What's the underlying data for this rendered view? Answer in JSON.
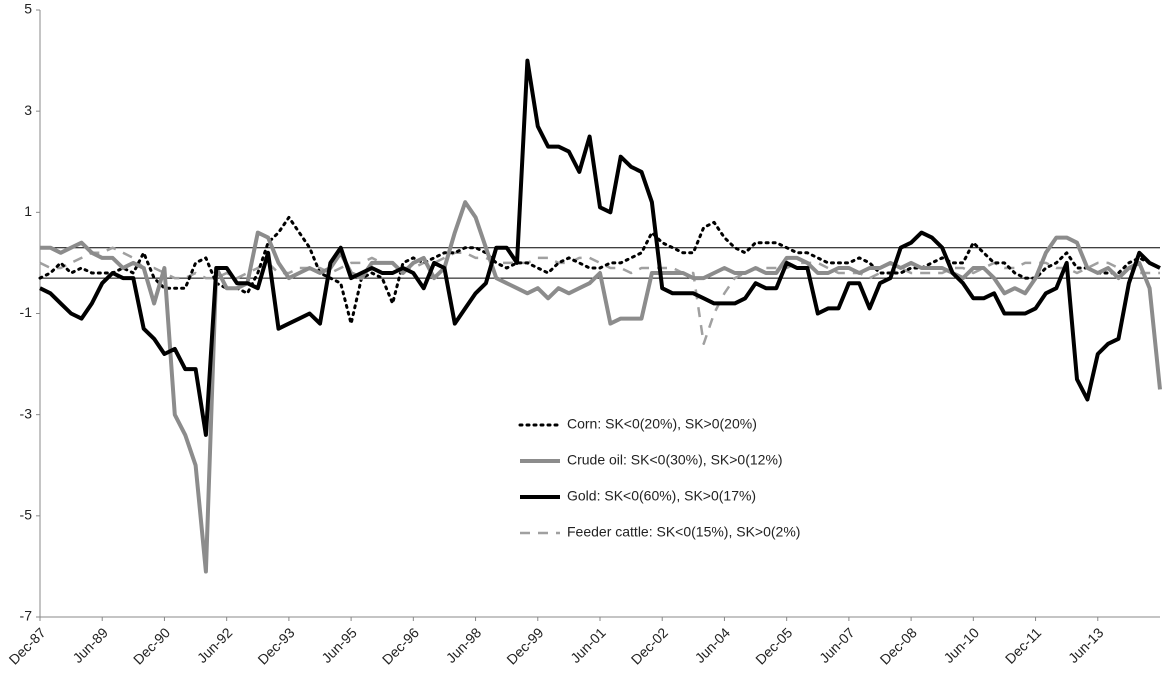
{
  "chart_data": {
    "type": "line",
    "categories": [
      "Dec-87",
      null,
      null,
      null,
      null,
      null,
      "Jun-89",
      null,
      null,
      null,
      null,
      null,
      "Dec-90",
      null,
      null,
      null,
      null,
      null,
      "Jun-92",
      null,
      null,
      null,
      null,
      null,
      "Dec-93",
      null,
      null,
      null,
      null,
      null,
      "Jun-95",
      null,
      null,
      null,
      null,
      null,
      "Dec-96",
      null,
      null,
      null,
      null,
      null,
      "Jun-98",
      null,
      null,
      null,
      null,
      null,
      "Dec-99",
      null,
      null,
      null,
      null,
      null,
      "Jun-01",
      null,
      null,
      null,
      null,
      null,
      "Dec-02",
      null,
      null,
      null,
      null,
      null,
      "Jun-04",
      null,
      null,
      null,
      null,
      null,
      "Dec-05",
      null,
      null,
      null,
      null,
      null,
      "Jun-07",
      null,
      null,
      null,
      null,
      null,
      "Dec-08",
      null,
      null,
      null,
      null,
      null,
      "Jun-10",
      null,
      null,
      null,
      null,
      null,
      "Dec-11",
      null,
      null,
      null,
      null,
      null,
      "Jun-13",
      null,
      null,
      null,
      null,
      null,
      null
    ],
    "series": [
      {
        "name": "Corn: SK<0(20%), SK>0(20%)",
        "color": "#000000",
        "dash": "dotted",
        "width": 3,
        "values": [
          -0.3,
          -0.2,
          0.0,
          -0.2,
          -0.1,
          -0.2,
          -0.2,
          -0.2,
          -0.1,
          -0.2,
          0.2,
          -0.3,
          -0.5,
          -0.5,
          -0.5,
          0.0,
          0.1,
          -0.4,
          -0.5,
          -0.5,
          -0.6,
          -0.2,
          0.4,
          0.6,
          0.9,
          0.6,
          0.3,
          -0.2,
          -0.3,
          -0.4,
          -1.2,
          -0.3,
          -0.2,
          -0.3,
          -0.8,
          0.0,
          0.1,
          0.0,
          0.1,
          0.2,
          0.2,
          0.3,
          0.3,
          0.2,
          0.0,
          -0.1,
          0.0,
          0.0,
          -0.1,
          -0.2,
          0.0,
          0.1,
          0.0,
          -0.1,
          -0.1,
          0.0,
          0.0,
          0.1,
          0.2,
          0.6,
          0.4,
          0.3,
          0.2,
          0.2,
          0.7,
          0.8,
          0.5,
          0.3,
          0.2,
          0.4,
          0.4,
          0.4,
          0.3,
          0.2,
          0.2,
          0.1,
          0.0,
          0.0,
          0.0,
          0.1,
          0.0,
          -0.2,
          -0.2,
          -0.2,
          -0.1,
          -0.1,
          0.0,
          0.1,
          0.0,
          0.0,
          0.4,
          0.2,
          0.0,
          0.0,
          -0.2,
          -0.3,
          -0.3,
          -0.1,
          0.0,
          0.2,
          -0.1,
          -0.1,
          -0.2,
          -0.2,
          -0.2,
          0.0,
          0.1,
          0.0,
          -0.1
        ]
      },
      {
        "name": "Crude oil: SK<0(30%), SK>0(12%)",
        "color": "#8c8c8c",
        "dash": "solid",
        "width": 4,
        "values": [
          0.3,
          0.3,
          0.2,
          0.3,
          0.4,
          0.2,
          0.1,
          0.1,
          -0.1,
          0.0,
          -0.1,
          -0.8,
          -0.1,
          -3.0,
          -3.4,
          -4.0,
          -6.1,
          -0.1,
          -0.5,
          -0.5,
          -0.4,
          0.6,
          0.5,
          0.0,
          -0.3,
          -0.2,
          -0.1,
          -0.2,
          -0.1,
          0.2,
          -0.2,
          -0.3,
          0.0,
          0.0,
          0.0,
          -0.2,
          0.0,
          0.1,
          -0.3,
          -0.1,
          0.6,
          1.2,
          0.9,
          0.3,
          -0.3,
          -0.4,
          -0.5,
          -0.6,
          -0.5,
          -0.7,
          -0.5,
          -0.6,
          -0.5,
          -0.4,
          -0.2,
          -1.2,
          -1.1,
          -1.1,
          -1.1,
          -0.2,
          -0.2,
          -0.2,
          -0.2,
          -0.3,
          -0.3,
          -0.2,
          -0.1,
          -0.2,
          -0.2,
          -0.1,
          -0.2,
          -0.2,
          0.1,
          0.1,
          0.0,
          -0.2,
          -0.2,
          -0.1,
          -0.1,
          -0.2,
          -0.1,
          -0.1,
          0.0,
          -0.1,
          0.0,
          -0.1,
          -0.1,
          -0.1,
          -0.2,
          -0.3,
          -0.1,
          -0.1,
          -0.3,
          -0.6,
          -0.5,
          -0.6,
          -0.3,
          0.2,
          0.5,
          0.5,
          0.4,
          -0.1,
          -0.2,
          -0.1,
          -0.3,
          -0.1,
          0.0,
          -0.5,
          -2.5
        ]
      },
      {
        "name": "Gold: SK<0(60%), SK>0(17%)",
        "color": "#000000",
        "dash": "solid",
        "width": 4,
        "values": [
          -0.5,
          -0.6,
          -0.8,
          -1.0,
          -1.1,
          -0.8,
          -0.4,
          -0.2,
          -0.3,
          -0.3,
          -1.3,
          -1.5,
          -1.8,
          -1.7,
          -2.1,
          -2.1,
          -3.4,
          -0.1,
          -0.1,
          -0.4,
          -0.4,
          -0.5,
          0.2,
          -1.3,
          -1.2,
          -1.1,
          -1.0,
          -1.2,
          0.0,
          0.3,
          -0.3,
          -0.2,
          -0.1,
          -0.2,
          -0.2,
          -0.1,
          -0.2,
          -0.5,
          0.0,
          -0.1,
          -1.2,
          -0.9,
          -0.6,
          -0.4,
          0.3,
          0.3,
          0.0,
          4.0,
          2.7,
          2.3,
          2.3,
          2.2,
          1.8,
          2.5,
          1.1,
          1.0,
          2.1,
          1.9,
          1.8,
          1.2,
          -0.5,
          -0.6,
          -0.6,
          -0.6,
          -0.7,
          -0.8,
          -0.8,
          -0.8,
          -0.7,
          -0.4,
          -0.5,
          -0.5,
          0.0,
          -0.1,
          -0.1,
          -1.0,
          -0.9,
          -0.9,
          -0.4,
          -0.4,
          -0.9,
          -0.4,
          -0.3,
          0.3,
          0.4,
          0.6,
          0.5,
          0.3,
          -0.2,
          -0.4,
          -0.7,
          -0.7,
          -0.6,
          -1.0,
          -1.0,
          -1.0,
          -0.9,
          -0.6,
          -0.5,
          0.0,
          -2.3,
          -2.7,
          -1.8,
          -1.6,
          -1.5,
          -0.4,
          0.2,
          0.0,
          -0.1
        ]
      },
      {
        "name": "Feeder cattle: SK<0(15%), SK>0(2%)",
        "color": "#a0a0a0",
        "dash": "dashed",
        "width": 2.5,
        "values": [
          0.0,
          -0.1,
          -0.1,
          0.0,
          0.1,
          0.2,
          0.2,
          0.3,
          0.2,
          0.1,
          -0.1,
          -0.1,
          -0.2,
          -0.3,
          -0.3,
          -0.2,
          -0.3,
          -0.3,
          -0.2,
          -0.3,
          -0.2,
          -0.1,
          0.0,
          -0.2,
          -0.2,
          -0.1,
          -0.1,
          -0.1,
          -0.2,
          -0.1,
          0.0,
          0.0,
          0.1,
          0.0,
          0.0,
          -0.1,
          -0.1,
          0.0,
          0.0,
          0.1,
          0.2,
          0.2,
          0.1,
          0.1,
          0.0,
          0.0,
          0.0,
          0.0,
          0.1,
          0.1,
          0.0,
          0.0,
          0.1,
          0.1,
          0.0,
          -0.1,
          -0.1,
          -0.2,
          -0.1,
          -0.1,
          -0.1,
          -0.1,
          -0.2,
          -0.2,
          -1.6,
          -1.0,
          -0.6,
          -0.3,
          -0.2,
          -0.1,
          -0.1,
          -0.1,
          -0.1,
          0.0,
          0.0,
          0.0,
          -0.1,
          -0.2,
          -0.2,
          -0.2,
          -0.3,
          -0.2,
          -0.2,
          -0.1,
          -0.2,
          -0.2,
          -0.2,
          -0.2,
          -0.1,
          -0.1,
          -0.2,
          -0.1,
          0.0,
          -0.1,
          -0.1,
          0.0,
          0.0,
          0.0,
          -0.1,
          -0.1,
          -0.2,
          -0.1,
          0.0,
          0.0,
          -0.1,
          -0.1,
          -0.2,
          -0.2,
          -0.2
        ]
      }
    ],
    "reference_lines": [
      0.3,
      -0.3
    ],
    "ylim": [
      -7,
      5
    ],
    "yticks": [
      -7,
      -5,
      -3,
      -1,
      1,
      3,
      5
    ],
    "grid": false,
    "legend": "lower center"
  }
}
